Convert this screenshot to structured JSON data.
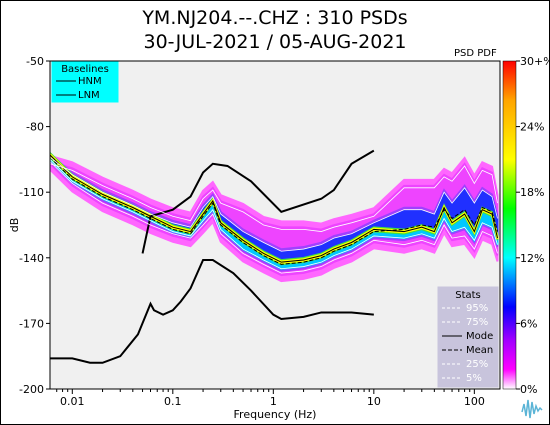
{
  "header": {
    "title_line1": "YM.NJ204.--.CHZ : 310 PSDs",
    "title_line2": "30-JUL-2021 / 05-AUG-2021"
  },
  "chart_data": {
    "type": "line",
    "title": "YM.NJ204.--.CHZ : 310 PSDs",
    "subtitle": "30-JUL-2021 / 05-AUG-2021",
    "xlabel": "Frequency (Hz)",
    "ylabel": "dB",
    "xscale": "log",
    "xlim": [
      0.006,
      180
    ],
    "ylim": [
      -200,
      -50
    ],
    "xticks": [
      0.01,
      0.1,
      1,
      10,
      100
    ],
    "xtick_labels": [
      "0.01",
      "0.1",
      "1",
      "10",
      "100"
    ],
    "yticks": [
      -50,
      -80,
      -110,
      -140,
      -170,
      -200
    ],
    "ytick_labels": [
      "-50",
      "-80",
      "-110",
      "-140",
      "-170",
      "-200"
    ],
    "background": "#f0f0f0",
    "baselines_legend": {
      "title": "Baselines",
      "entries": [
        "HNM",
        "LNM"
      ],
      "color": "#00ffff",
      "placement": "top-left"
    },
    "stats_legend": {
      "title": "Stats",
      "entries": [
        "95%",
        "75%",
        "Mode",
        "Mean",
        "25%",
        "5%"
      ],
      "color": "#c8c4dc",
      "placement": "bottom-right"
    },
    "colorbar": {
      "label": "PSD PDF",
      "ticks": [
        "30+%",
        "24%",
        "18%",
        "12%",
        "6%",
        "0%"
      ],
      "colors": [
        "#ff0000",
        "#ffa500",
        "#ffff00",
        "#00ff00",
        "#00ffff",
        "#0000ff",
        "#a000ff",
        "#ff00ff",
        "#ffffff"
      ]
    },
    "series": [
      {
        "name": "HNM",
        "color": "#000000",
        "x": [
          0.05,
          0.06,
          0.1,
          0.15,
          0.2,
          0.25,
          0.35,
          0.6,
          1.2,
          3,
          4,
          6,
          10
        ],
        "y": [
          -138,
          -121,
          -118,
          -112,
          -101,
          -97,
          -98,
          -105,
          -119,
          -113,
          -109,
          -97,
          -91
        ]
      },
      {
        "name": "LNM",
        "color": "#000000",
        "x": [
          0.006,
          0.01,
          0.015,
          0.02,
          0.03,
          0.045,
          0.06,
          0.065,
          0.08,
          0.1,
          0.12,
          0.15,
          0.2,
          0.25,
          0.4,
          0.6,
          1,
          1.2,
          2,
          3,
          6,
          10
        ],
        "y": [
          -186,
          -186,
          -188,
          -188,
          -185,
          -175,
          -161,
          -164,
          -166,
          -164,
          -160,
          -154,
          -141,
          -141,
          -147,
          -155,
          -166,
          -168,
          -167,
          -165,
          -165,
          -166
        ]
      },
      {
        "name": "Mode",
        "color": "#000000",
        "x": [
          0.006,
          0.01,
          0.02,
          0.04,
          0.06,
          0.1,
          0.15,
          0.2,
          0.25,
          0.3,
          0.5,
          0.8,
          1.2,
          2,
          3,
          4,
          6,
          10,
          20,
          30,
          40,
          50,
          60,
          80,
          100,
          120,
          150,
          170
        ],
        "y": [
          -93,
          -103,
          -111,
          -117,
          -121,
          -126,
          -128,
          -120,
          -114,
          -124,
          -132,
          -138,
          -142,
          -141,
          -139,
          -136,
          -133,
          -127,
          -128,
          -126,
          -128,
          -117,
          -124,
          -120,
          -128,
          -118,
          -120,
          -131
        ]
      },
      {
        "name": "Mean",
        "color": "#000000",
        "dash": true,
        "x": [
          0.006,
          0.01,
          0.02,
          0.04,
          0.06,
          0.1,
          0.15,
          0.2,
          0.25,
          0.3,
          0.5,
          0.8,
          1.2,
          2,
          3,
          4,
          6,
          10,
          20,
          30,
          40,
          50,
          60,
          80,
          100,
          120,
          150,
          170
        ],
        "y": [
          -94,
          -104,
          -112,
          -118,
          -122,
          -127,
          -129,
          -121,
          -115,
          -125,
          -133,
          -139,
          -143,
          -142,
          -140,
          -137,
          -134,
          -128,
          -127,
          -125,
          -126,
          -118,
          -122,
          -118,
          -125,
          -117,
          -119,
          -128
        ]
      },
      {
        "name": "95%",
        "color": "#ffffff",
        "x": [
          0.006,
          0.01,
          0.02,
          0.04,
          0.06,
          0.1,
          0.15,
          0.2,
          0.25,
          0.3,
          0.5,
          0.8,
          1.2,
          2,
          3,
          4,
          6,
          10,
          20,
          30,
          40,
          50,
          60,
          80,
          100,
          120,
          150,
          170
        ],
        "y": [
          -97,
          -100,
          -107,
          -113,
          -117,
          -121,
          -123,
          -113,
          -109,
          -115,
          -119,
          -125,
          -127,
          -127,
          -128,
          -126,
          -124,
          -121,
          -108,
          -108,
          -108,
          -103,
          -105,
          -98,
          -106,
          -100,
          -102,
          -115
        ]
      },
      {
        "name": "75%",
        "color": "#ffffff",
        "x": [
          0.006,
          0.01,
          0.02,
          0.04,
          0.06,
          0.1,
          0.15,
          0.2,
          0.25,
          0.3,
          0.5,
          0.8,
          1.2,
          2,
          3,
          4,
          6,
          10,
          20,
          30,
          40,
          50,
          60,
          80,
          100,
          120,
          150,
          170
        ],
        "y": [
          -94,
          -102,
          -110,
          -116,
          -120,
          -124,
          -126,
          -117,
          -112,
          -120,
          -128,
          -133,
          -137,
          -136,
          -134,
          -131,
          -129,
          -124,
          -118,
          -118,
          -120,
          -110,
          -115,
          -108,
          -115,
          -109,
          -112,
          -122
        ]
      },
      {
        "name": "25%",
        "color": "#ffffff",
        "x": [
          0.006,
          0.01,
          0.02,
          0.04,
          0.06,
          0.1,
          0.15,
          0.2,
          0.25,
          0.3,
          0.5,
          0.8,
          1.2,
          2,
          3,
          4,
          6,
          10,
          20,
          30,
          40,
          50,
          60,
          80,
          100,
          120,
          150,
          170
        ],
        "y": [
          -95,
          -105,
          -113,
          -119,
          -123,
          -128,
          -130,
          -123,
          -118,
          -127,
          -136,
          -141,
          -145,
          -144,
          -142,
          -139,
          -136,
          -130,
          -131,
          -129,
          -131,
          -122,
          -128,
          -126,
          -132,
          -124,
          -126,
          -134
        ]
      },
      {
        "name": "5%",
        "color": "#ffffff",
        "x": [
          0.006,
          0.01,
          0.02,
          0.04,
          0.06,
          0.1,
          0.15,
          0.2,
          0.25,
          0.3,
          0.5,
          0.8,
          1.2,
          2,
          3,
          4,
          6,
          10,
          20,
          30,
          40,
          50,
          60,
          80,
          100,
          120,
          150,
          170
        ],
        "y": [
          -96,
          -106,
          -115,
          -121,
          -125,
          -129,
          -131,
          -125,
          -120,
          -129,
          -138,
          -143,
          -147,
          -146,
          -144,
          -141,
          -138,
          -132,
          -134,
          -132,
          -134,
          -125,
          -131,
          -130,
          -136,
          -128,
          -130,
          -138
        ]
      }
    ]
  }
}
